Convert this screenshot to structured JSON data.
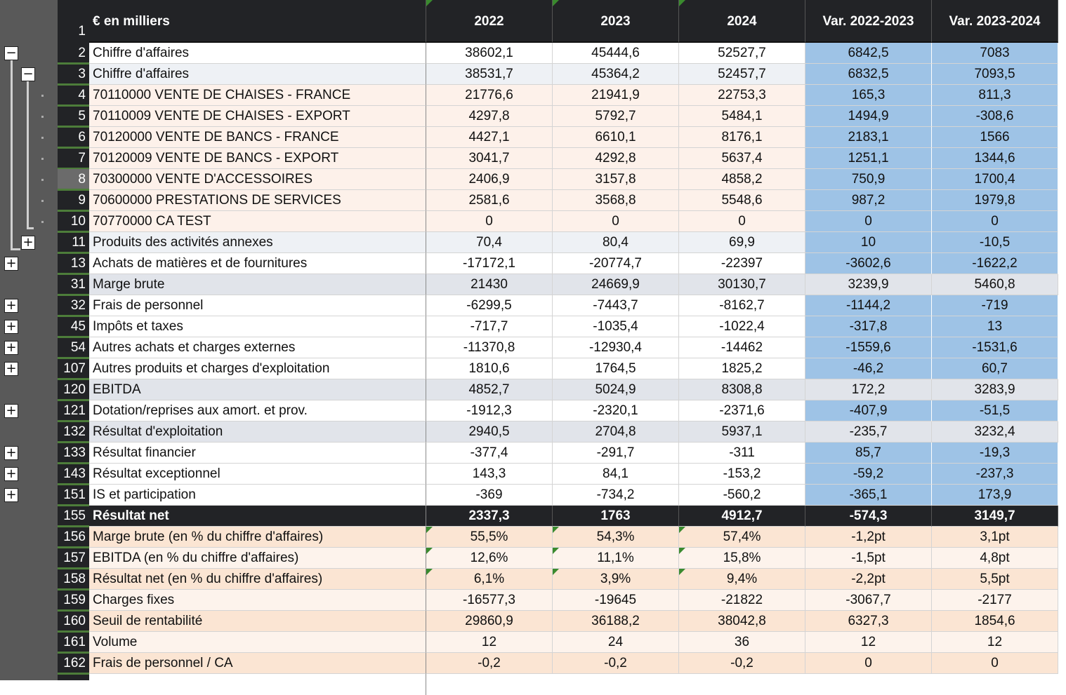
{
  "header": {
    "row_number": "1",
    "label": "€ en milliers",
    "columns": [
      "2022",
      "2023",
      "2024",
      "Var. 2022-2023",
      "Var. 2023-2024"
    ]
  },
  "colors": {
    "header_bg": "#222326",
    "variance_blue": "#9ec3e6",
    "subtotal_grey": "#e1e4ea",
    "detail_peach": "#fdf1ea",
    "ratio_peach": "#fbe5d3",
    "ratio_light": "#fdf3ec",
    "outline_bg": "#595959"
  },
  "rows": [
    {
      "num": "2",
      "label": "Chiffre d'affaires",
      "values": [
        "38602,1",
        "45444,6",
        "52527,7",
        "6842,5",
        "7083"
      ],
      "style": "white",
      "ol": "minus",
      "olLevel": 1
    },
    {
      "num": "3",
      "label": "Chiffre d'affaires",
      "values": [
        "38531,7",
        "45364,2",
        "52457,7",
        "6832,5",
        "7093,5"
      ],
      "style": "lightgrey",
      "ol": "minus",
      "olLevel": 2
    },
    {
      "num": "4",
      "label": "70110000 VENTE DE CHAISES - FRANCE",
      "values": [
        "21776,6",
        "21941,9",
        "22753,3",
        "165,3",
        "811,3"
      ],
      "style": "peach",
      "ol": "dot"
    },
    {
      "num": "5",
      "label": "70110009 VENTE DE CHAISES - EXPORT",
      "values": [
        "4297,8",
        "5792,7",
        "5484,1",
        "1494,9",
        "-308,6"
      ],
      "style": "peach",
      "ol": "dot"
    },
    {
      "num": "6",
      "label": "70120000 VENTE DE BANCS - FRANCE",
      "values": [
        "4427,1",
        "6610,1",
        "8176,1",
        "2183,1",
        "1566"
      ],
      "style": "peach",
      "ol": "dot"
    },
    {
      "num": "7",
      "label": "70120009 VENTE DE BANCS - EXPORT",
      "values": [
        "3041,7",
        "4292,8",
        "5637,4",
        "1251,1",
        "1344,6"
      ],
      "style": "peach",
      "ol": "dot"
    },
    {
      "num": "8",
      "label": "70300000 VENTE D'ACCESSOIRES",
      "values": [
        "2406,9",
        "3157,8",
        "4858,2",
        "750,9",
        "1700,4"
      ],
      "style": "peach",
      "ol": "dot",
      "selected": true
    },
    {
      "num": "9",
      "label": "70600000 PRESTATIONS DE SERVICES",
      "values": [
        "2581,6",
        "3568,8",
        "5548,6",
        "987,2",
        "1979,8"
      ],
      "style": "peach",
      "ol": "dot"
    },
    {
      "num": "10",
      "label": "70770000 CA TEST",
      "values": [
        "0",
        "0",
        "0",
        "0",
        "0"
      ],
      "style": "peach",
      "ol": "dot"
    },
    {
      "num": "11",
      "label": "Produits des activités annexes",
      "values": [
        "70,4",
        "80,4",
        "69,9",
        "10",
        "-10,5"
      ],
      "style": "lightgrey",
      "ol": "plus",
      "olLevel": 2
    },
    {
      "num": "13",
      "label": "Achats de matières et de fournitures",
      "values": [
        "-17172,1",
        "-20774,7",
        "-22397",
        "-3602,6",
        "-1622,2"
      ],
      "style": "white",
      "ol": "plus",
      "olLevel": 1
    },
    {
      "num": "31",
      "label": "Marge brute",
      "values": [
        "21430",
        "24669,9",
        "30130,7",
        "3239,9",
        "5460,8"
      ],
      "style": "subtotal"
    },
    {
      "num": "32",
      "label": "Frais de personnel",
      "values": [
        "-6299,5",
        "-7443,7",
        "-8162,7",
        "-1144,2",
        "-719"
      ],
      "style": "white",
      "ol": "plus",
      "olLevel": 1
    },
    {
      "num": "45",
      "label": "Impôts et taxes",
      "values": [
        "-717,7",
        "-1035,4",
        "-1022,4",
        "-317,8",
        "13"
      ],
      "style": "white",
      "ol": "plus",
      "olLevel": 1
    },
    {
      "num": "54",
      "label": "Autres achats et charges externes",
      "values": [
        "-11370,8",
        "-12930,4",
        "-14462",
        "-1559,6",
        "-1531,6"
      ],
      "style": "white",
      "ol": "plus",
      "olLevel": 1
    },
    {
      "num": "107",
      "label": "Autres produits et charges d'exploitation",
      "values": [
        "1810,6",
        "1764,5",
        "1825,2",
        "-46,2",
        "60,7"
      ],
      "style": "white",
      "ol": "plus",
      "olLevel": 1
    },
    {
      "num": "120",
      "label": "EBITDA",
      "values": [
        "4852,7",
        "5024,9",
        "8308,8",
        "172,2",
        "3283,9"
      ],
      "style": "subtotal"
    },
    {
      "num": "121",
      "label": "Dotation/reprises aux amort. et prov.",
      "values": [
        "-1912,3",
        "-2320,1",
        "-2371,6",
        "-407,9",
        "-51,5"
      ],
      "style": "white",
      "ol": "plus",
      "olLevel": 1
    },
    {
      "num": "132",
      "label": "Résultat d'exploitation",
      "values": [
        "2940,5",
        "2704,8",
        "5937,1",
        "-235,7",
        "3232,4"
      ],
      "style": "subtotal"
    },
    {
      "num": "133",
      "label": "Résultat financier",
      "values": [
        "-377,4",
        "-291,7",
        "-311",
        "85,7",
        "-19,3"
      ],
      "style": "white",
      "ol": "plus",
      "olLevel": 1
    },
    {
      "num": "143",
      "label": "Résultat exceptionnel",
      "values": [
        "143,3",
        "84,1",
        "-153,2",
        "-59,2",
        "-237,3"
      ],
      "style": "white",
      "ol": "plus",
      "olLevel": 1
    },
    {
      "num": "151",
      "label": "IS et participation",
      "values": [
        "-369",
        "-734,2",
        "-560,2",
        "-365,1",
        "173,9"
      ],
      "style": "white",
      "ol": "plus",
      "olLevel": 1
    },
    {
      "num": "155",
      "label": "Résultat net",
      "values": [
        "2337,3",
        "1763",
        "4912,7",
        "-574,3",
        "3149,7"
      ],
      "style": "total"
    },
    {
      "num": "156",
      "label": "Marge brute (en % du chiffre d'affaires)",
      "values": [
        "55,5%",
        "54,3%",
        "57,4%",
        "-1,2pt",
        "3,1pt"
      ],
      "style": "ratio",
      "tri": true
    },
    {
      "num": "157",
      "label": "EBITDA (en % du chiffre d'affaires)",
      "values": [
        "12,6%",
        "11,1%",
        "15,8%",
        "-1,5pt",
        "4,8pt"
      ],
      "style": "ratiolight",
      "tri": true
    },
    {
      "num": "158",
      "label": "Résultat net (en % du chiffre d'affaires)",
      "values": [
        "6,1%",
        "3,9%",
        "9,4%",
        "-2,2pt",
        "5,5pt"
      ],
      "style": "ratio",
      "tri": true
    },
    {
      "num": "159",
      "label": "Charges fixes",
      "values": [
        "-16577,3",
        "-19645",
        "-21822",
        "-3067,7",
        "-2177"
      ],
      "style": "ratiolight"
    },
    {
      "num": "160",
      "label": "Seuil de rentabilité",
      "values": [
        "29860,9",
        "36188,2",
        "38042,8",
        "6327,3",
        "1854,6"
      ],
      "style": "ratio"
    },
    {
      "num": "161",
      "label": "Volume",
      "values": [
        "12",
        "24",
        "36",
        "12",
        "12"
      ],
      "style": "ratiolight"
    },
    {
      "num": "162",
      "label": "Frais de personnel / CA",
      "values": [
        "-0,2",
        "-0,2",
        "-0,2",
        "0",
        "0"
      ],
      "style": "ratio"
    }
  ]
}
